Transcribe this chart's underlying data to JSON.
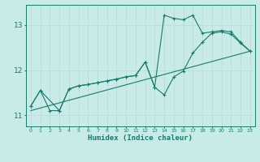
{
  "xlabel": "Humidex (Indice chaleur)",
  "bg_color": "#c8ebe8",
  "line_color": "#1a7a6e",
  "grid_color": "#b8dbd8",
  "xlim": [
    -0.5,
    23.5
  ],
  "ylim": [
    10.75,
    13.45
  ],
  "xticks": [
    0,
    1,
    2,
    3,
    4,
    5,
    6,
    7,
    8,
    9,
    10,
    11,
    12,
    13,
    14,
    15,
    16,
    17,
    18,
    19,
    20,
    21,
    22,
    23
  ],
  "yticks": [
    11,
    12,
    13
  ],
  "line1_x": [
    0,
    1,
    2,
    3,
    4,
    5,
    6,
    7,
    8,
    9,
    10,
    11,
    12,
    13,
    14,
    15,
    16,
    17,
    18,
    19,
    20,
    21,
    22,
    23
  ],
  "line1_y": [
    11.2,
    11.55,
    11.1,
    11.1,
    11.58,
    11.65,
    11.68,
    11.72,
    11.76,
    11.8,
    11.85,
    11.88,
    12.18,
    11.62,
    13.22,
    13.15,
    13.12,
    13.22,
    12.82,
    12.85,
    12.88,
    12.85,
    12.62,
    12.42
  ],
  "line2_x": [
    0,
    1,
    3,
    4,
    5,
    6,
    7,
    8,
    9,
    10,
    11,
    12,
    13,
    14,
    15,
    16,
    17,
    18,
    19,
    20,
    21,
    22,
    23
  ],
  "line2_y": [
    11.2,
    11.55,
    11.1,
    11.58,
    11.65,
    11.68,
    11.72,
    11.76,
    11.8,
    11.85,
    11.88,
    12.18,
    11.62,
    11.45,
    11.85,
    11.98,
    12.38,
    12.62,
    12.82,
    12.85,
    12.8,
    12.6,
    12.42
  ],
  "line3_x": [
    0,
    23
  ],
  "line3_y": [
    11.1,
    12.42
  ]
}
